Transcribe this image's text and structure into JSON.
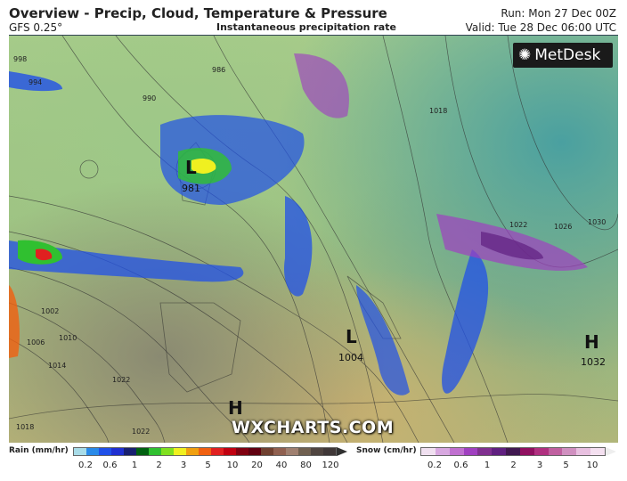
{
  "header": {
    "title": "Overview - Precip, Cloud, Temperature & Pressure",
    "model": "GFS 0.25°",
    "subtitle": "Instantaneous precipitation rate",
    "run": "Run: Mon 27 Dec 00Z",
    "valid": "Valid: Tue 28 Dec 06:00 UTC"
  },
  "brand": {
    "logo": "MetDesk",
    "watermark": "WXCHARTS.COM"
  },
  "map": {
    "pressure_centres": [
      {
        "type": "L",
        "value": "981"
      },
      {
        "type": "L",
        "value": "1004"
      },
      {
        "type": "H",
        "value": "1032"
      },
      {
        "type": "H",
        "value": ""
      }
    ],
    "isobar_labels": [
      "998",
      "994",
      "990",
      "986",
      "1018",
      "1022",
      "1026",
      "1030",
      "1002",
      "1006",
      "1010",
      "1014",
      "1022",
      "1022",
      "1018"
    ]
  },
  "legend": {
    "rain": {
      "title": "Rain (mm/hr)",
      "ticks": [
        "0.2",
        "0.6",
        "1",
        "2",
        "3",
        "5",
        "10",
        "20",
        "40",
        "80",
        "120"
      ],
      "colors": [
        "#a8dce8",
        "#2a8ae8",
        "#2050e8",
        "#2030d0",
        "#182070",
        "#006010",
        "#30c030",
        "#80e020",
        "#f0f020",
        "#f0a010",
        "#f06010",
        "#e02020",
        "#c00010",
        "#800010",
        "#600010",
        "#704030",
        "#906050",
        "#a08070",
        "#706050",
        "#504540",
        "#403838"
      ]
    },
    "snow": {
      "title": "Snow (cm/hr)",
      "ticks": [
        "0.2",
        "0.6",
        "1",
        "2",
        "3",
        "5",
        "10"
      ],
      "colors": [
        "#f0e0f0",
        "#d8a8e0",
        "#c070d0",
        "#a040c0",
        "#803090",
        "#602080",
        "#401850",
        "#901060",
        "#b03080",
        "#c060a0",
        "#d090c0",
        "#e8c0e0",
        "#f4e0f0"
      ]
    }
  }
}
